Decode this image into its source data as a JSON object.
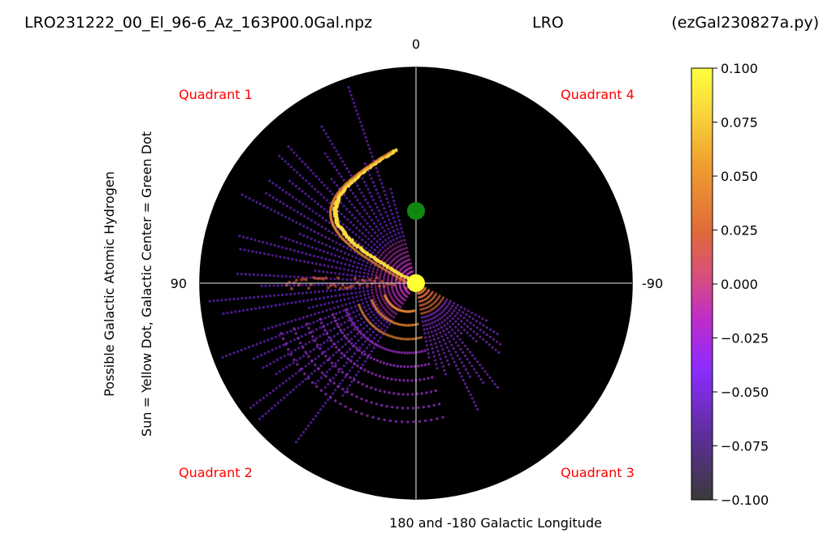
{
  "chart_data": {
    "type": "polar-scatter",
    "title_left": "LRO231222_00_El_96-6_Az_163P00.0Gal.npz",
    "title_center": "LRO",
    "title_right": "(ezGal230827a.py)",
    "ylabel_line1": "Possible Galactic Atomic Hydrogen",
    "ylabel_line2": "Sun = Yellow Dot, Galactic Center = Green Dot",
    "xlabel": "180 and -180 Galactic Longitude",
    "angle_labels": {
      "top": "0",
      "left": "90",
      "right": "-90"
    },
    "quadrants": [
      "Quadrant 1",
      "Quadrant 4",
      "Quadrant 2",
      "Quadrant 3"
    ],
    "colorbar": {
      "min": -0.1,
      "max": 0.1,
      "ticks": [
        "0.100",
        "0.075",
        "0.050",
        "0.025",
        "0.000",
        "−0.025",
        "−0.050",
        "−0.075",
        "−0.100"
      ],
      "tick_values": [
        0.1,
        0.075,
        0.05,
        0.025,
        0,
        -0.025,
        -0.05,
        -0.075,
        -0.1
      ]
    },
    "sun_color": "#ffff33",
    "galactic_center_color": "#118811"
  }
}
